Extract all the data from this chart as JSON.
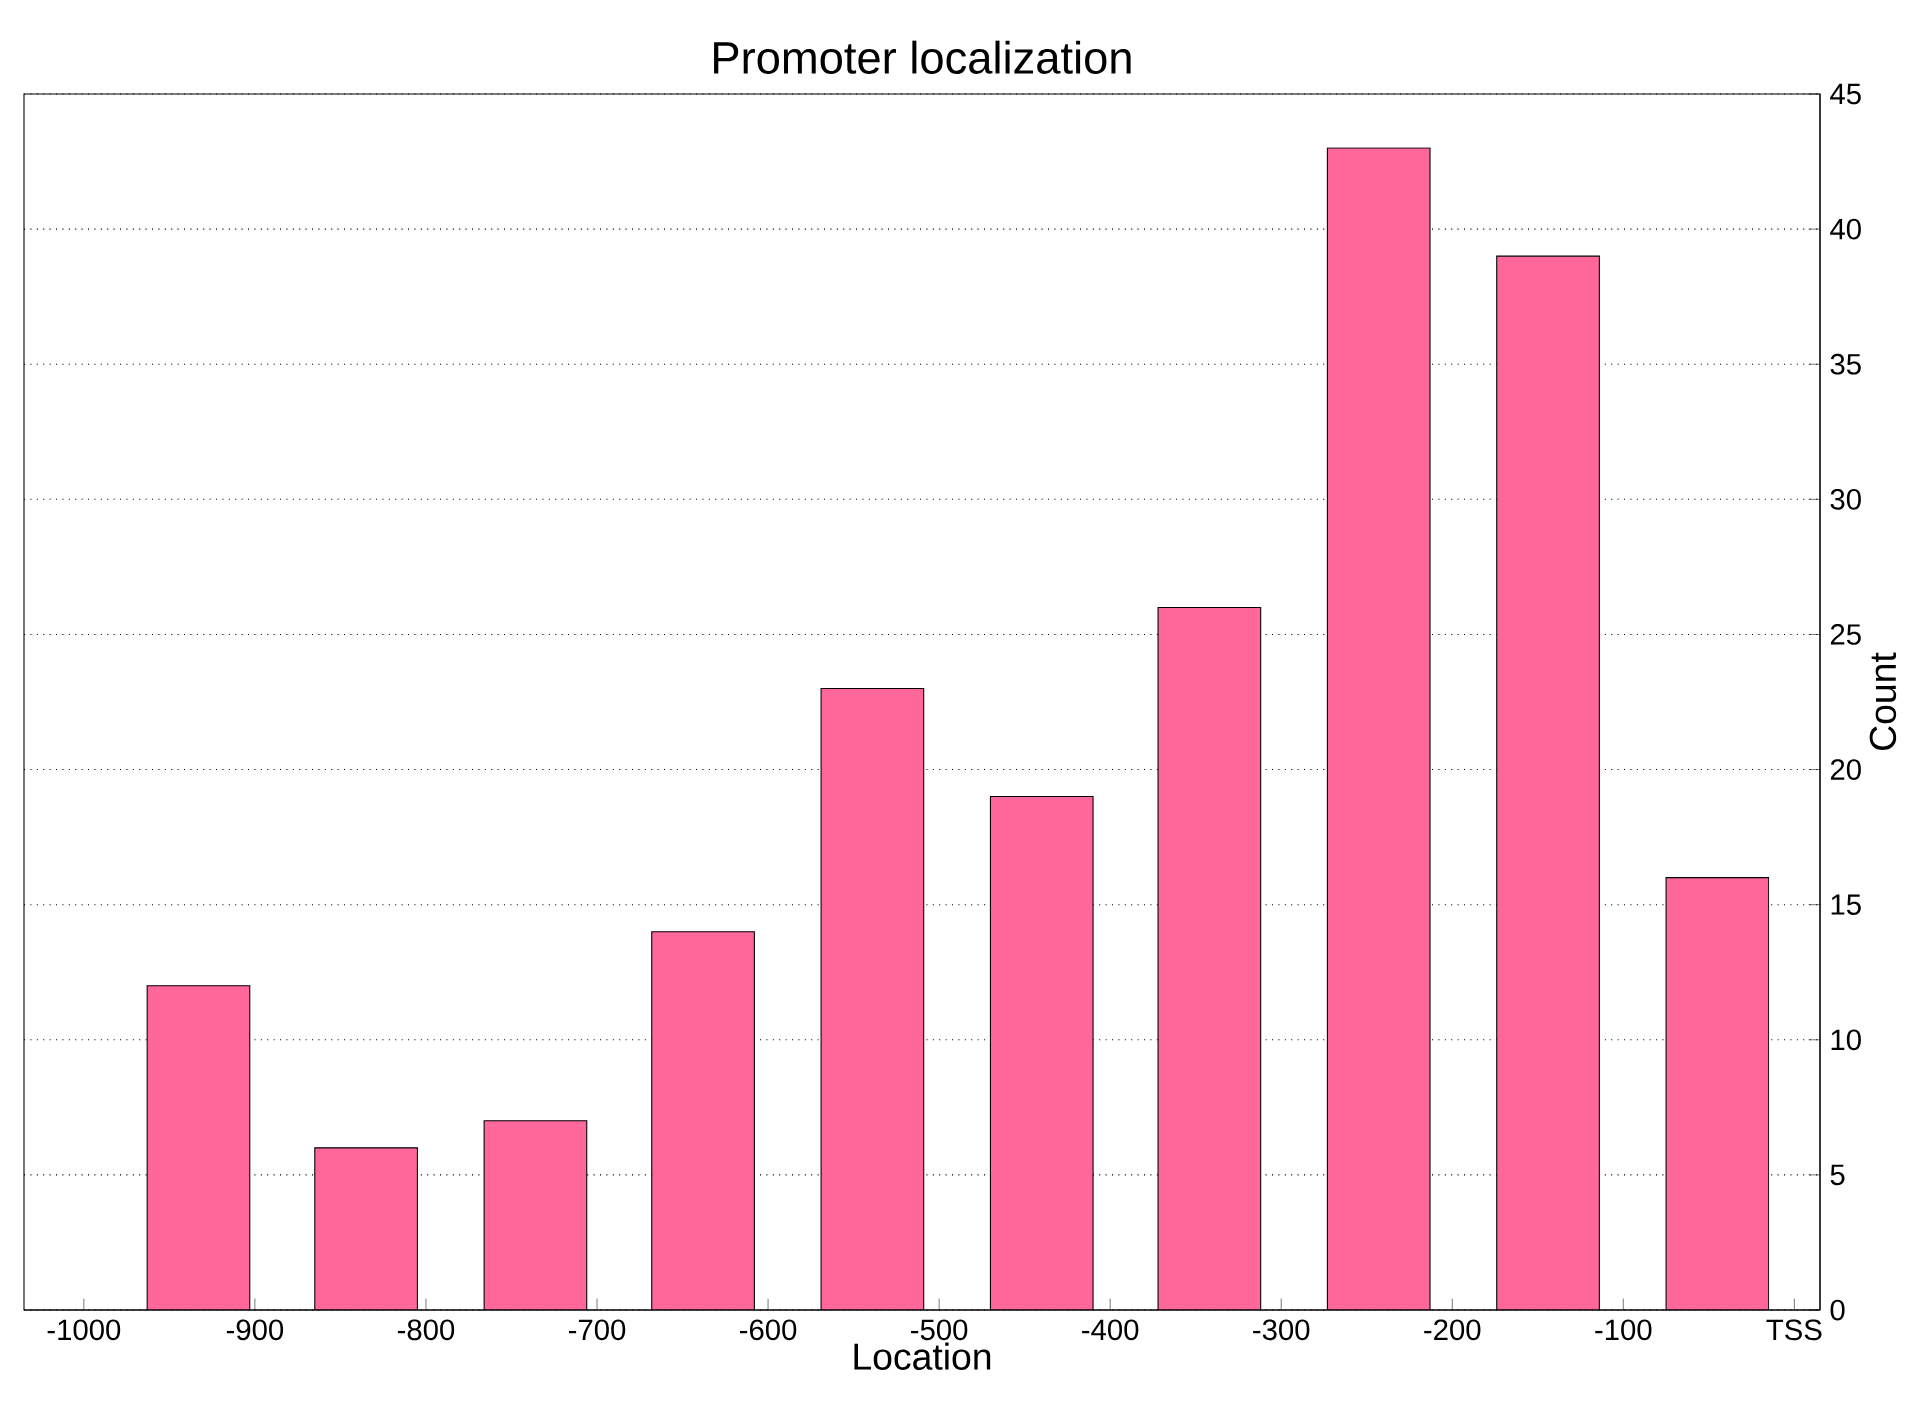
{
  "chart_data": {
    "type": "bar",
    "title": "Promoter localization",
    "xlabel": "Location",
    "ylabel": "Count",
    "x": [
      -933,
      -835,
      -736,
      -638,
      -539,
      -440,
      -342,
      -243,
      -144,
      -45
    ],
    "values": [
      12,
      6,
      7,
      14,
      23,
      19,
      26,
      43,
      39,
      16
    ],
    "color": "#ff6699",
    "xlim": [
      -1035,
      15
    ],
    "xticks": [
      -1000,
      -900,
      -800,
      -700,
      -600,
      -500,
      -400,
      -300,
      -200,
      -100,
      {
        "value": 0,
        "label": "TSS"
      }
    ],
    "ylim": [
      0,
      45
    ],
    "yticks": [
      0,
      5,
      10,
      15,
      20,
      25,
      30,
      35,
      40,
      45
    ],
    "grid": "y"
  }
}
